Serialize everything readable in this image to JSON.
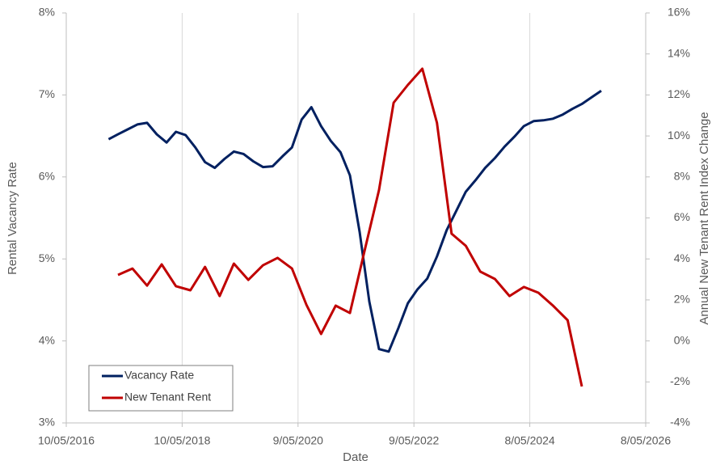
{
  "chart_data": {
    "type": "line",
    "x_label": "Date",
    "y_label": "Rental Vacancy Rate",
    "y2_label": "Annual New Tenant Rent Index Change",
    "xlim": [
      "2016-05-10",
      "2026-05-08"
    ],
    "xticks": [
      {
        "value": "2016-05-10",
        "label": "10/05/2016"
      },
      {
        "value": "2018-05-10",
        "label": "10/05/2018"
      },
      {
        "value": "2020-05-09",
        "label": "9/05/2020"
      },
      {
        "value": "2022-05-09",
        "label": "9/05/2022"
      },
      {
        "value": "2024-05-08",
        "label": "8/05/2024"
      },
      {
        "value": "2026-05-08",
        "label": "8/05/2026"
      }
    ],
    "ylim": [
      3,
      8
    ],
    "yticks": [
      {
        "value": 3,
        "label": "3%"
      },
      {
        "value": 4,
        "label": "4%"
      },
      {
        "value": 5,
        "label": "5%"
      },
      {
        "value": 6,
        "label": "6%"
      },
      {
        "value": 7,
        "label": "7%"
      },
      {
        "value": 8,
        "label": "8%"
      }
    ],
    "y2lim": [
      -4,
      16
    ],
    "y2ticks": [
      {
        "value": -4,
        "label": "-4%"
      },
      {
        "value": -2,
        "label": "-2%"
      },
      {
        "value": 0,
        "label": "0%"
      },
      {
        "value": 2,
        "label": "2%"
      },
      {
        "value": 4,
        "label": "4%"
      },
      {
        "value": 6,
        "label": "6%"
      },
      {
        "value": 8,
        "label": "8%"
      },
      {
        "value": 10,
        "label": "10%"
      },
      {
        "value": 12,
        "label": "12%"
      },
      {
        "value": 14,
        "label": "14%"
      },
      {
        "value": 16,
        "label": "16%"
      }
    ],
    "xgrid": true,
    "legend": "lower left",
    "series": [
      {
        "name": "Vacancy Rate",
        "color": "#002060",
        "x": [
          "2017-02",
          "2017-04",
          "2017-06",
          "2017-08",
          "2017-10",
          "2017-12",
          "2018-02",
          "2018-04",
          "2018-06",
          "2018-08",
          "2018-10",
          "2018-12",
          "2019-02",
          "2019-04",
          "2019-06",
          "2019-08",
          "2019-10",
          "2019-12",
          "2020-02",
          "2020-04",
          "2020-06",
          "2020-08",
          "2020-10",
          "2020-12",
          "2021-02",
          "2021-04",
          "2021-06",
          "2021-08",
          "2021-10",
          "2021-12",
          "2022-02",
          "2022-04",
          "2022-06",
          "2022-08",
          "2022-10",
          "2022-12",
          "2023-02",
          "2023-04",
          "2023-06",
          "2023-08",
          "2023-10",
          "2023-12",
          "2024-02",
          "2024-04",
          "2024-06",
          "2024-08",
          "2024-10",
          "2024-12",
          "2025-02",
          "2025-04",
          "2025-06",
          "2025-08"
        ],
        "values": [
          6.46,
          6.52,
          6.58,
          6.64,
          6.66,
          6.52,
          6.42,
          6.55,
          6.51,
          6.36,
          6.18,
          6.11,
          6.22,
          6.31,
          6.28,
          6.19,
          6.12,
          6.13,
          6.25,
          6.36,
          6.7,
          6.85,
          6.62,
          6.44,
          6.3,
          6.02,
          5.33,
          4.48,
          3.9,
          3.87,
          4.16,
          4.46,
          4.63,
          4.76,
          5.03,
          5.35,
          5.59,
          5.82,
          5.96,
          6.11,
          6.23,
          6.37,
          6.49,
          6.62,
          6.68,
          6.69,
          6.71,
          6.76,
          6.83,
          6.89,
          6.97,
          7.05
        ]
      },
      {
        "name": "New Tenant Rent",
        "color": "#c00000",
        "axis": "y2",
        "x": [
          "2017-04",
          "2017-07",
          "2017-10",
          "2018-01",
          "2018-04",
          "2018-07",
          "2018-10",
          "2019-01",
          "2019-04",
          "2019-07",
          "2019-10",
          "2020-01",
          "2020-04",
          "2020-07",
          "2020-10",
          "2021-01",
          "2021-04",
          "2021-07",
          "2021-10",
          "2022-01",
          "2022-04",
          "2022-07",
          "2022-10",
          "2023-01",
          "2023-04",
          "2023-07",
          "2023-10",
          "2024-01",
          "2024-04",
          "2024-07",
          "2024-10",
          "2025-01",
          "2025-04"
        ],
        "values": [
          3.22,
          3.53,
          2.7,
          3.73,
          2.67,
          2.47,
          3.61,
          2.19,
          3.77,
          2.98,
          3.69,
          4.05,
          3.53,
          1.76,
          0.34,
          1.72,
          1.36,
          4.36,
          7.36,
          11.62,
          12.49,
          13.28,
          10.64,
          5.23,
          4.64,
          3.38,
          3.02,
          2.19,
          2.63,
          2.35,
          1.72,
          1.01,
          -2.22
        ]
      }
    ]
  }
}
